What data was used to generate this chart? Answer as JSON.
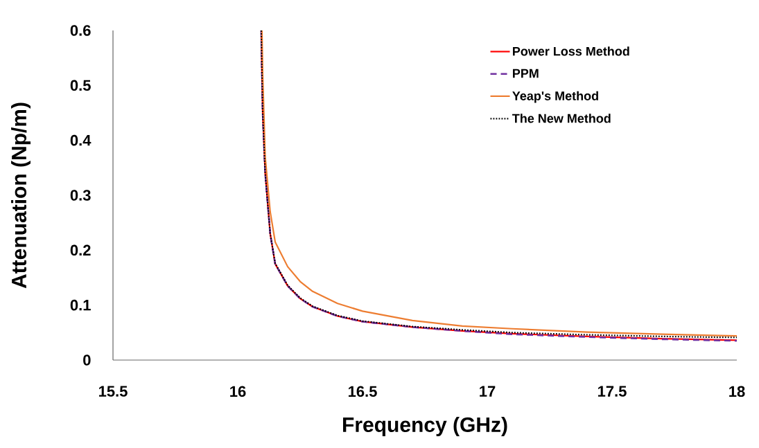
{
  "chart_data": {
    "type": "line",
    "xlabel": "Frequency (GHz)",
    "ylabel": "Attenuation (Np/m)",
    "xlim": [
      15.5,
      18
    ],
    "xticks": [
      15.5,
      16,
      16.5,
      17,
      17.5,
      18
    ],
    "ylim": [
      0,
      0.6
    ],
    "yticks": [
      0,
      0.1,
      0.2,
      0.3,
      0.4,
      0.5,
      0.6
    ],
    "grid": false,
    "legend": "top right",
    "marker": "none",
    "series": [
      {
        "name": "Power Loss Method",
        "color": "#ff0000",
        "line_style": "solid",
        "x": [
          16.094,
          16.1,
          16.11,
          16.13,
          16.15,
          16.2,
          16.25,
          16.3,
          16.4,
          16.5,
          16.7,
          16.9,
          17.1,
          17.4,
          17.7,
          18
        ],
        "values": [
          0.6,
          0.45,
          0.34,
          0.23,
          0.175,
          0.135,
          0.112,
          0.097,
          0.08,
          0.07,
          0.06,
          0.053,
          0.048,
          0.043,
          0.039,
          0.036
        ]
      },
      {
        "name": "PPM",
        "color": "#7030a0",
        "line_style": "dashed",
        "x": [
          16.094,
          16.1,
          16.11,
          16.13,
          16.15,
          16.2,
          16.25,
          16.3,
          16.4,
          16.5,
          16.7,
          16.9,
          17.1,
          17.4,
          17.7,
          18
        ],
        "values": [
          0.6,
          0.45,
          0.34,
          0.23,
          0.175,
          0.135,
          0.112,
          0.097,
          0.08,
          0.07,
          0.06,
          0.053,
          0.047,
          0.042,
          0.038,
          0.035
        ]
      },
      {
        "name": "Yeap's Method",
        "color": "#ed7d31",
        "line_style": "solid",
        "x": [
          16.097,
          16.1,
          16.11,
          16.13,
          16.15,
          16.2,
          16.25,
          16.3,
          16.4,
          16.5,
          16.7,
          16.9,
          17.1,
          17.4,
          17.7,
          18
        ],
        "values": [
          0.6,
          0.52,
          0.37,
          0.27,
          0.215,
          0.17,
          0.143,
          0.125,
          0.103,
          0.089,
          0.072,
          0.062,
          0.057,
          0.051,
          0.047,
          0.044
        ]
      },
      {
        "name": "The New Method",
        "color": "#000000",
        "line_style": "dotted",
        "x": [
          16.094,
          16.1,
          16.11,
          16.13,
          16.15,
          16.2,
          16.25,
          16.3,
          16.4,
          16.5,
          16.7,
          16.9,
          17.1,
          17.4,
          17.7,
          18
        ],
        "values": [
          0.6,
          0.45,
          0.34,
          0.23,
          0.176,
          0.136,
          0.113,
          0.098,
          0.081,
          0.071,
          0.061,
          0.055,
          0.05,
          0.046,
          0.043,
          0.041
        ]
      }
    ]
  }
}
